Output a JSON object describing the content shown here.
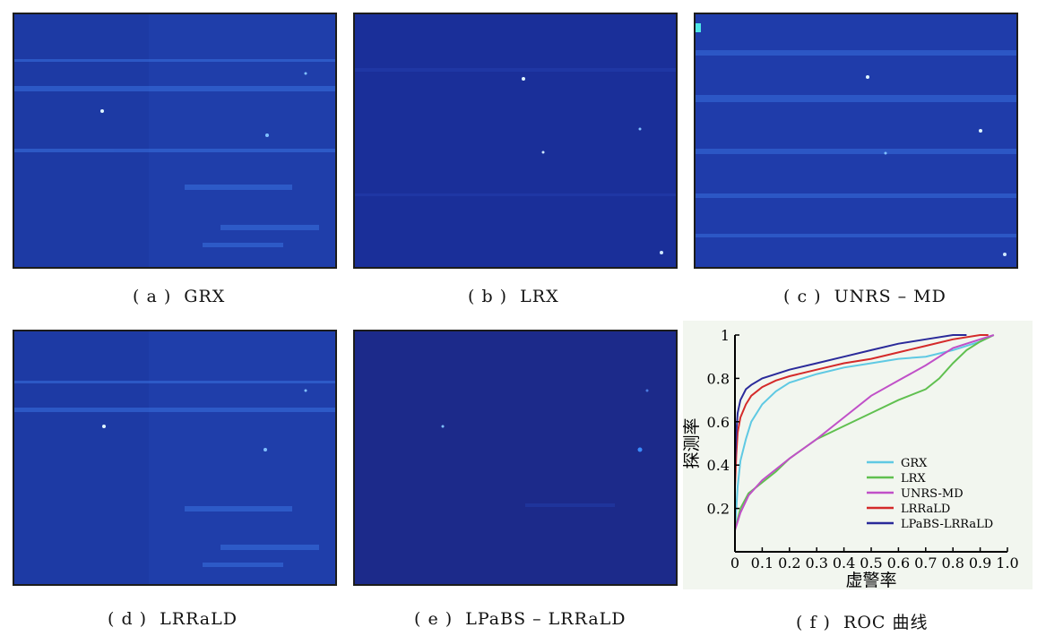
{
  "panels": [
    {
      "id": "a",
      "caption": "( a )  GRX"
    },
    {
      "id": "b",
      "caption": "( b )  LRX"
    },
    {
      "id": "c",
      "caption": "( c )  UNRS – MD"
    },
    {
      "id": "d",
      "caption": "( d )  LRRaLD"
    },
    {
      "id": "e",
      "caption": "( e )  LPaBS – LRRaLD"
    }
  ],
  "roc_caption": "( f )  ROC 曲线",
  "colors": {
    "map_bg_a": "#1d3aa4",
    "map_bg_b": "#1a2f99",
    "map_bg_e": "#1c2a8a",
    "highlight": "#3a72e0"
  },
  "chart_data": {
    "type": "line",
    "xlabel": "虚警率",
    "ylabel": "探测率",
    "xlim": [
      0,
      1.0
    ],
    "ylim": [
      0,
      1
    ],
    "xticks": [
      "0",
      "0.1",
      "0.2",
      "0.3",
      "0.4",
      "0.5",
      "0.6",
      "0.7",
      "0.8",
      "0.9",
      "1.0"
    ],
    "yticks": [
      "0.2",
      "0.4",
      "0.6",
      "0.8",
      "1"
    ],
    "legend_position": "bottom-right",
    "series": [
      {
        "name": "GRX",
        "color": "#5fc9e3",
        "x": [
          0,
          0.01,
          0.02,
          0.04,
          0.06,
          0.1,
          0.15,
          0.2,
          0.3,
          0.4,
          0.5,
          0.6,
          0.7,
          0.8,
          0.9,
          0.95
        ],
        "y": [
          0.1,
          0.3,
          0.42,
          0.52,
          0.6,
          0.68,
          0.74,
          0.78,
          0.82,
          0.85,
          0.87,
          0.89,
          0.9,
          0.93,
          0.97,
          1.0
        ]
      },
      {
        "name": "LRX",
        "color": "#60c050",
        "x": [
          0,
          0.02,
          0.05,
          0.1,
          0.15,
          0.2,
          0.3,
          0.4,
          0.5,
          0.6,
          0.7,
          0.75,
          0.8,
          0.85,
          0.9,
          0.95
        ],
        "y": [
          0.1,
          0.2,
          0.27,
          0.32,
          0.37,
          0.43,
          0.52,
          0.58,
          0.64,
          0.7,
          0.75,
          0.8,
          0.87,
          0.93,
          0.97,
          1.0
        ]
      },
      {
        "name": "UNRS-MD",
        "color": "#c050c8",
        "x": [
          0,
          0.02,
          0.05,
          0.1,
          0.15,
          0.2,
          0.3,
          0.4,
          0.5,
          0.6,
          0.7,
          0.8,
          0.9,
          0.95
        ],
        "y": [
          0.1,
          0.18,
          0.26,
          0.33,
          0.38,
          0.43,
          0.52,
          0.62,
          0.72,
          0.79,
          0.86,
          0.94,
          0.98,
          1.0
        ]
      },
      {
        "name": "LRRaLD",
        "color": "#d42a2a",
        "x": [
          0,
          0.005,
          0.01,
          0.02,
          0.04,
          0.06,
          0.1,
          0.15,
          0.2,
          0.3,
          0.4,
          0.5,
          0.6,
          0.7,
          0.8,
          0.9,
          0.93
        ],
        "y": [
          0.3,
          0.45,
          0.55,
          0.62,
          0.68,
          0.72,
          0.76,
          0.79,
          0.81,
          0.84,
          0.87,
          0.89,
          0.92,
          0.95,
          0.98,
          1.0,
          1.0
        ]
      },
      {
        "name": "LPaBS-LRRaLD",
        "color": "#2a2a9a",
        "x": [
          0,
          0.005,
          0.01,
          0.02,
          0.04,
          0.06,
          0.1,
          0.15,
          0.2,
          0.3,
          0.4,
          0.5,
          0.6,
          0.7,
          0.8,
          0.85
        ],
        "y": [
          0.4,
          0.55,
          0.64,
          0.7,
          0.75,
          0.77,
          0.8,
          0.82,
          0.84,
          0.87,
          0.9,
          0.93,
          0.96,
          0.98,
          1.0,
          1.0
        ]
      }
    ]
  }
}
